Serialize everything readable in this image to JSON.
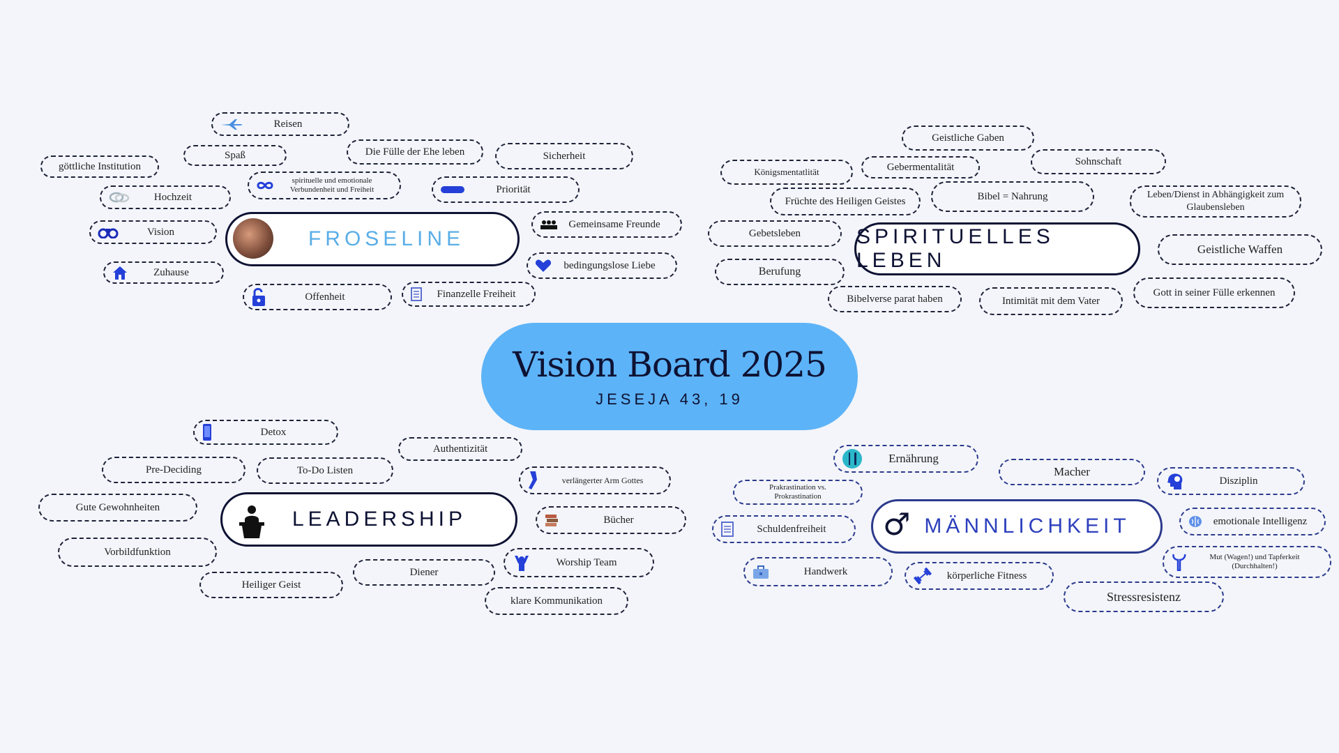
{
  "center": {
    "title": "Vision Board 2025",
    "subtitle": "JESEJA 43, 19"
  },
  "hubs": {
    "froseline": "FROSELINE",
    "spirituell": "SPIRITUELLES LEBEN",
    "leadership": "LEADERSHIP",
    "maennlichkeit": "MÄNNLICHKEIT",
    "maennlichkeit_symbol": "♂"
  },
  "froseline_items": {
    "reisen": "Reisen",
    "spass": "Spaß",
    "fuelle_ehe": "Die Fülle der Ehe leben",
    "sicherheit": "Sicherheit",
    "goettliche": "göttliche Institution",
    "spirituelle_verbundenheit": "spirituelle und emotionale Verbundenheit und Freiheit",
    "prioritaet": "Priorität",
    "hochzeit": "Hochzeit",
    "vision": "Vision",
    "gemeinsame_freunde": "Gemeinsame Freunde",
    "zuhause": "Zuhause",
    "bedingungslose_liebe": "bedingungslose Liebe",
    "offenheit": "Offenheit",
    "finanzielle_freiheit": "Finanzelle Freiheit"
  },
  "spirituell_items": {
    "geistliche_gaben": "Geistliche Gaben",
    "koenigsmentalitaet": "Königsmentatlität",
    "gebermentalitaet": "Gebermentalität",
    "sohnschaft": "Sohnschaft",
    "fruechte": "Früchte des Heiligen Geistes",
    "bibel_nahrung": "Bibel = Nahrung",
    "leben_dienst": "Leben/Dienst in Abhängigkeit zum Glaubensleben",
    "gebetsleben": "Gebetsleben",
    "geistliche_waffen": "Geistliche Waffen",
    "berufung": "Berufung",
    "gott_fuelle": "Gott in seiner Fülle erkennen",
    "bibelverse": "Bibelverse parat haben",
    "intimitaet": "Intimität mit dem Vater"
  },
  "leadership_items": {
    "detox": "Detox",
    "authentizitaet": "Authentizität",
    "pre_deciding": "Pre-Deciding",
    "todo": "To-Do Listen",
    "arm_gottes": "verlängerter Arm Gottes",
    "gute_gewohnheiten": "Gute Gewohnheiten",
    "buecher": "Bücher",
    "vorbildfunktion": "Vorbildfunktion",
    "worship": "Worship Team",
    "diener": "Diener",
    "heiliger_geist": "Heiliger Geist",
    "kommunikation": "klare Kommunikation"
  },
  "maennlichkeit_items": {
    "ernaehrung": "Ernährung",
    "macher": "Macher",
    "disziplin": "Disziplin",
    "prokrastination": "Prakrastination vs. Prokrastination",
    "schuldenfreiheit": "Schuldenfreiheit",
    "emotionale_intelligenz": "emotionale Intelligenz",
    "mut": "Mut (Wagen!) und Tapferkeit (Durchhalten!)",
    "handwerk": "Handwerk",
    "fitness": "körperliche Fitness",
    "stressresistenz": "Stressresistenz"
  },
  "colors": {
    "center": "#5db3f7",
    "froseline_text": "#5aaee6",
    "maennlichkeit_text": "#2c3fbd",
    "hub_border": "#0e1233",
    "background": "#f3f5fa"
  }
}
